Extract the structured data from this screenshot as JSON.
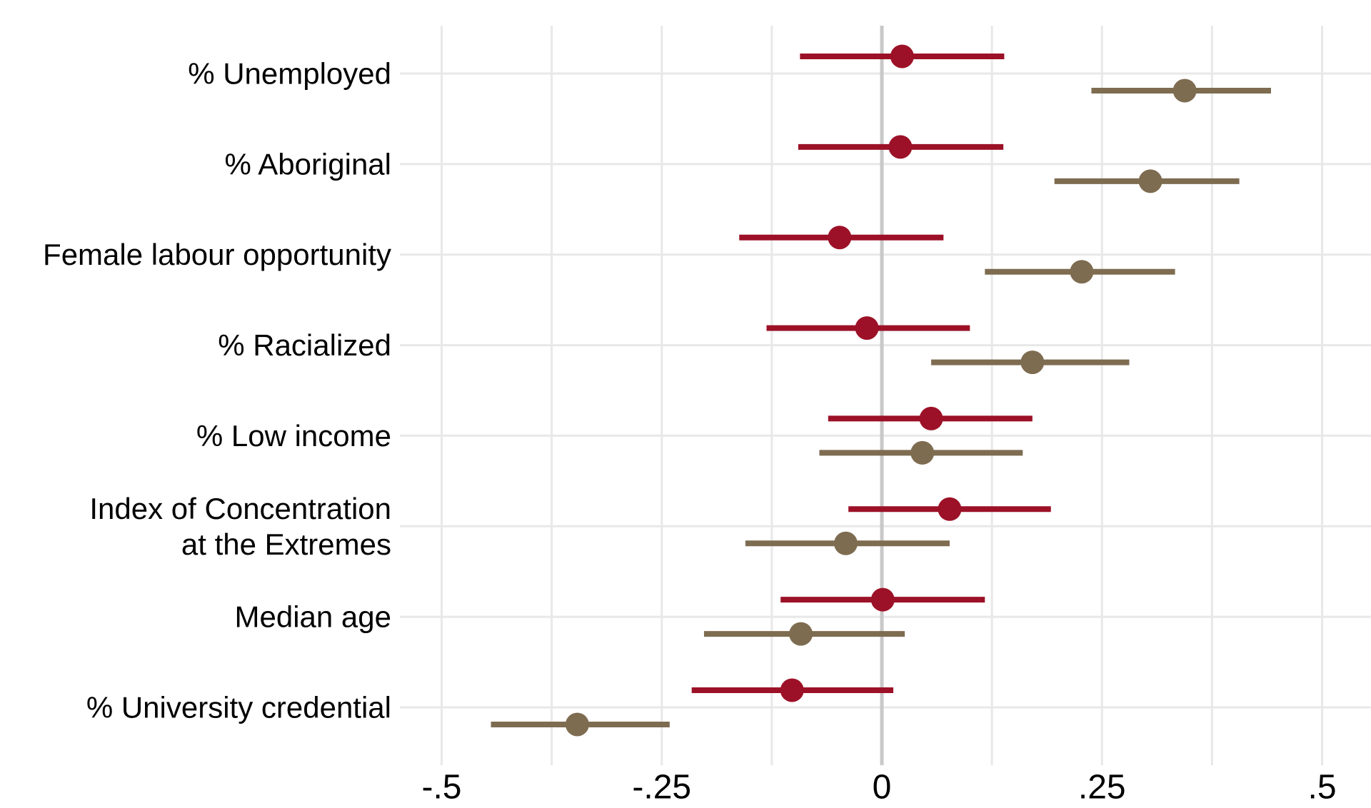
{
  "figure": {
    "background": "#ffffff",
    "grid_color": "#e8e8e8",
    "zero_line_color": "#c8c8c8",
    "text_color": "#000000"
  },
  "chart_data": {
    "type": "scatter",
    "subtype": "horizontal dot-whisker coefficient plot, two estimates per category (maroon above gridline, taupe below)",
    "title": "",
    "xlabel": "",
    "ylabel": "",
    "grid": "on",
    "legend": "none",
    "zero_reference_line": true,
    "categories": [
      "% Unemployed",
      "% Aboriginal",
      "Female labour opportunity",
      "% Racialized",
      "% Low income",
      "Index of Concentration\nat the Extremes",
      "Median age",
      "% University credential"
    ],
    "x_tick_labels": [
      "-.5",
      "-.25",
      "0",
      ".25",
      ".5"
    ],
    "x_tick_values": [
      -0.5,
      -0.25,
      0,
      0.25,
      0.5
    ],
    "minor_grid_step": 0.125,
    "xlim": [
      -0.548,
      0.556
    ],
    "series": [
      {
        "name": "maroon",
        "color": "#9c1127",
        "position": "above-gridline",
        "estimates": [
          0.023,
          0.021,
          -0.048,
          -0.017,
          0.056,
          0.077,
          0.001,
          -0.102
        ],
        "ci_low": [
          -0.093,
          -0.095,
          -0.162,
          -0.131,
          -0.061,
          -0.038,
          -0.115,
          -0.216
        ],
        "ci_high": [
          0.139,
          0.138,
          0.07,
          0.1,
          0.171,
          0.192,
          0.117,
          0.013
        ]
      },
      {
        "name": "taupe",
        "color": "#7e6c51",
        "position": "below-gridline",
        "estimates": [
          0.344,
          0.305,
          0.227,
          0.171,
          0.046,
          -0.041,
          -0.092,
          -0.346
        ],
        "ci_low": [
          0.238,
          0.196,
          0.117,
          0.056,
          -0.071,
          -0.155,
          -0.202,
          -0.444
        ],
        "ci_high": [
          0.442,
          0.406,
          0.333,
          0.281,
          0.16,
          0.077,
          0.026,
          -0.241
        ]
      }
    ]
  }
}
